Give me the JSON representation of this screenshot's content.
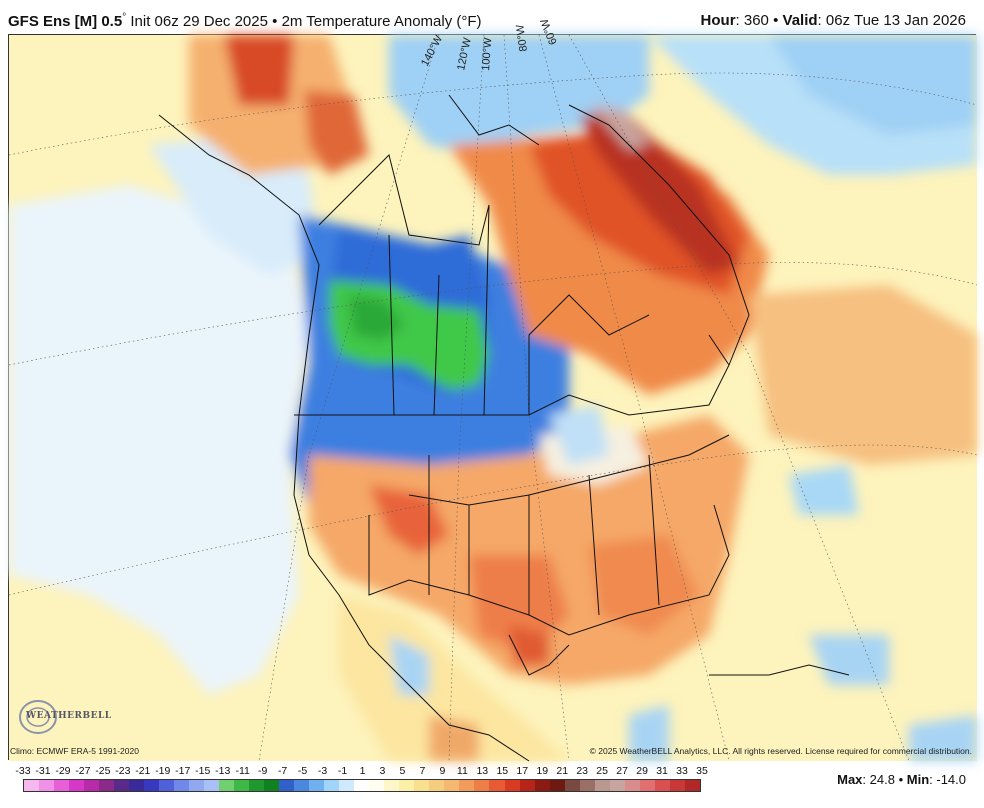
{
  "header": {
    "model": "GFS Ens [M] 0.5",
    "degree": "°",
    "init": "Init 06z 29 Dec 2025",
    "bullet": "•",
    "variable": "2m Temperature Anomaly (°F)",
    "hour_label": "Hour",
    "hour_value": ": 360",
    "valid_label": "Valid",
    "valid_value": ": 06z Tue 13 Jan 2026"
  },
  "map": {
    "longitude_labels": [
      "140°W",
      "120°W",
      "100°W",
      "80°W",
      "60°W"
    ],
    "colors": {
      "background_warm": "#fdf5c0",
      "cold_blue": "#3f7ee0",
      "light_blue": "#9fd0f5",
      "green": "#3fc84a",
      "orange": "#f2a060",
      "red": "#e0502a",
      "dark_red": "#9a2818"
    }
  },
  "footer": {
    "climo": "Climo: ECMWF ERA-5 1991-2020",
    "copyright": "© 2025 WeatherBELL Analytics, LLC. All rights reserved. License required for commercial distribution.",
    "logo_text": "WEATHERBELL"
  },
  "legend": {
    "labels": [
      "-33",
      "-31",
      "-29",
      "-27",
      "-25",
      "-23",
      "-21",
      "-19",
      "-17",
      "-15",
      "-13",
      "-11",
      "-9",
      "-7",
      "-5",
      "-3",
      "-1",
      "1",
      "3",
      "5",
      "7",
      "9",
      "11",
      "13",
      "15",
      "17",
      "19",
      "21",
      "23",
      "25",
      "27",
      "29",
      "31",
      "33",
      "35"
    ],
    "colors": [
      "#f7b8f0",
      "#f090e8",
      "#e860d8",
      "#d838c8",
      "#b82aa8",
      "#8a2a8a",
      "#5a2a8a",
      "#3a2a9a",
      "#3838c0",
      "#5060d8",
      "#7088e8",
      "#90a8f0",
      "#a8c0f5",
      "#70d070",
      "#40b848",
      "#209830",
      "#108020",
      "#3060c8",
      "#4a88e0",
      "#70b0f0",
      "#a0d4f8",
      "#cfeafc",
      "#ffffff",
      "#fffdf0",
      "#fdf6c8",
      "#fcefa8",
      "#f8e090",
      "#f6cc80",
      "#f4b870",
      "#f29c5c",
      "#ee7e48",
      "#e85a34",
      "#d83a22",
      "#b82418",
      "#8a1a12",
      "#6e1a10",
      "#7a4a40",
      "#9a7066",
      "#b89890",
      "#c8a4a0",
      "#d88c8c",
      "#e07070",
      "#d85050",
      "#c83838",
      "#b02828"
    ],
    "max_label": "Max",
    "max_value": ": 24.8",
    "min_label": "Min",
    "min_value": ": -14.0"
  }
}
